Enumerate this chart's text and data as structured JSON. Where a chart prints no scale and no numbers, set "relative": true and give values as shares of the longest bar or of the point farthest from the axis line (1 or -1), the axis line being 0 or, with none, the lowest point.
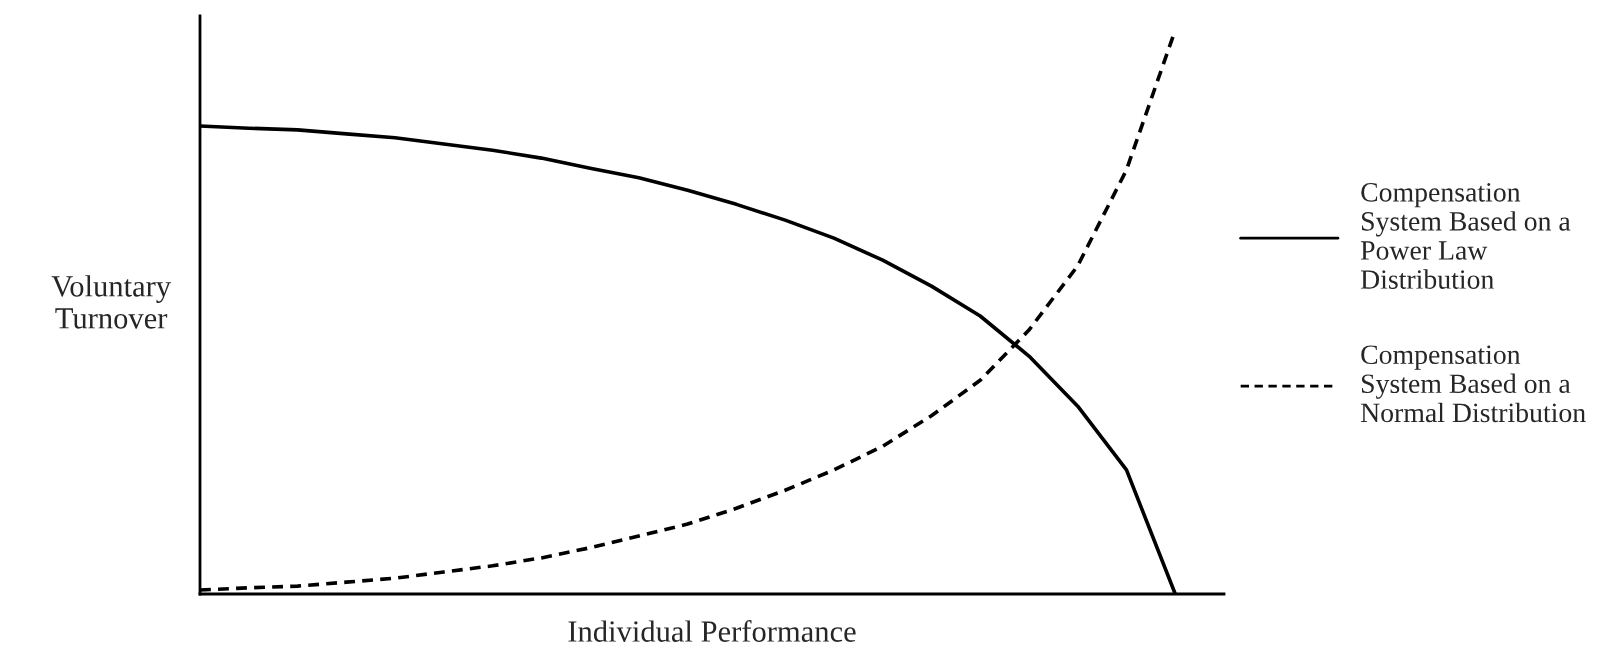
{
  "chart_data": {
    "type": "line",
    "relative": true,
    "xlabel": "Individual Performance",
    "ylabel": "Voluntary\nTurnover",
    "legend": "right",
    "grid": false,
    "marker": "none",
    "categories": [
      null,
      null,
      null,
      null,
      null,
      null,
      null,
      null,
      null,
      null,
      null,
      null,
      null,
      null,
      null,
      null,
      null,
      null,
      null,
      null,
      null
    ],
    "series": [
      {
        "name": "Compensation\nSystem Based on a\nPower Law\nDistribution",
        "color": "#000000",
        "line_style": "solid",
        "values": [
          0.83,
          0.826,
          0.823,
          0.816,
          0.809,
          0.798,
          0.787,
          0.773,
          0.755,
          0.738,
          0.716,
          0.691,
          0.663,
          0.631,
          0.592,
          0.546,
          0.493,
          0.422,
          0.333,
          0.22,
          0
        ]
      },
      {
        "name": "Compensation\nSystem Based on a\nNormal Distribution",
        "color": "#000000",
        "line_style": "dashed",
        "values": [
          0.007,
          0.011,
          0.014,
          0.021,
          0.028,
          0.039,
          0.05,
          0.064,
          0.082,
          0.103,
          0.124,
          0.152,
          0.184,
          0.22,
          0.262,
          0.316,
          0.379,
          0.468,
          0.582,
          0.752,
          1
        ]
      }
    ]
  }
}
